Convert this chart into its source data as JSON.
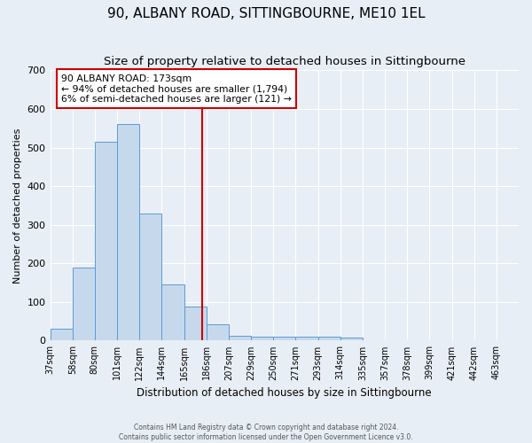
{
  "title": "90, ALBANY ROAD, SITTINGBOURNE, ME10 1EL",
  "subtitle": "Size of property relative to detached houses in Sittingbourne",
  "xlabel": "Distribution of detached houses by size in Sittingbourne",
  "ylabel": "Number of detached properties",
  "bin_labels": [
    "37sqm",
    "58sqm",
    "80sqm",
    "101sqm",
    "122sqm",
    "144sqm",
    "165sqm",
    "186sqm",
    "207sqm",
    "229sqm",
    "250sqm",
    "271sqm",
    "293sqm",
    "314sqm",
    "335sqm",
    "357sqm",
    "378sqm",
    "399sqm",
    "421sqm",
    "442sqm",
    "463sqm"
  ],
  "bar_heights": [
    30,
    190,
    515,
    560,
    330,
    145,
    88,
    42,
    12,
    10,
    10,
    10,
    10,
    7,
    0,
    0,
    0,
    0,
    0,
    0,
    0
  ],
  "bar_color": "#c6d9ec",
  "bar_edge_color": "#5b9bd5",
  "vline_position": 6.82,
  "vline_color": "#cc0000",
  "annotation_text": "90 ALBANY ROAD: 173sqm\n← 94% of detached houses are smaller (1,794)\n6% of semi-detached houses are larger (121) →",
  "annotation_box_color": "white",
  "annotation_box_edge_color": "#cc0000",
  "ylim": [
    0,
    700
  ],
  "yticks": [
    0,
    100,
    200,
    300,
    400,
    500,
    600,
    700
  ],
  "bg_color": "#e8eef5",
  "plot_bg_color": "#e8eef5",
  "grid_color": "white",
  "title_fontsize": 11,
  "subtitle_fontsize": 9.5,
  "footer_text": "Contains HM Land Registry data © Crown copyright and database right 2024.\nContains public sector information licensed under the Open Government Licence v3.0."
}
